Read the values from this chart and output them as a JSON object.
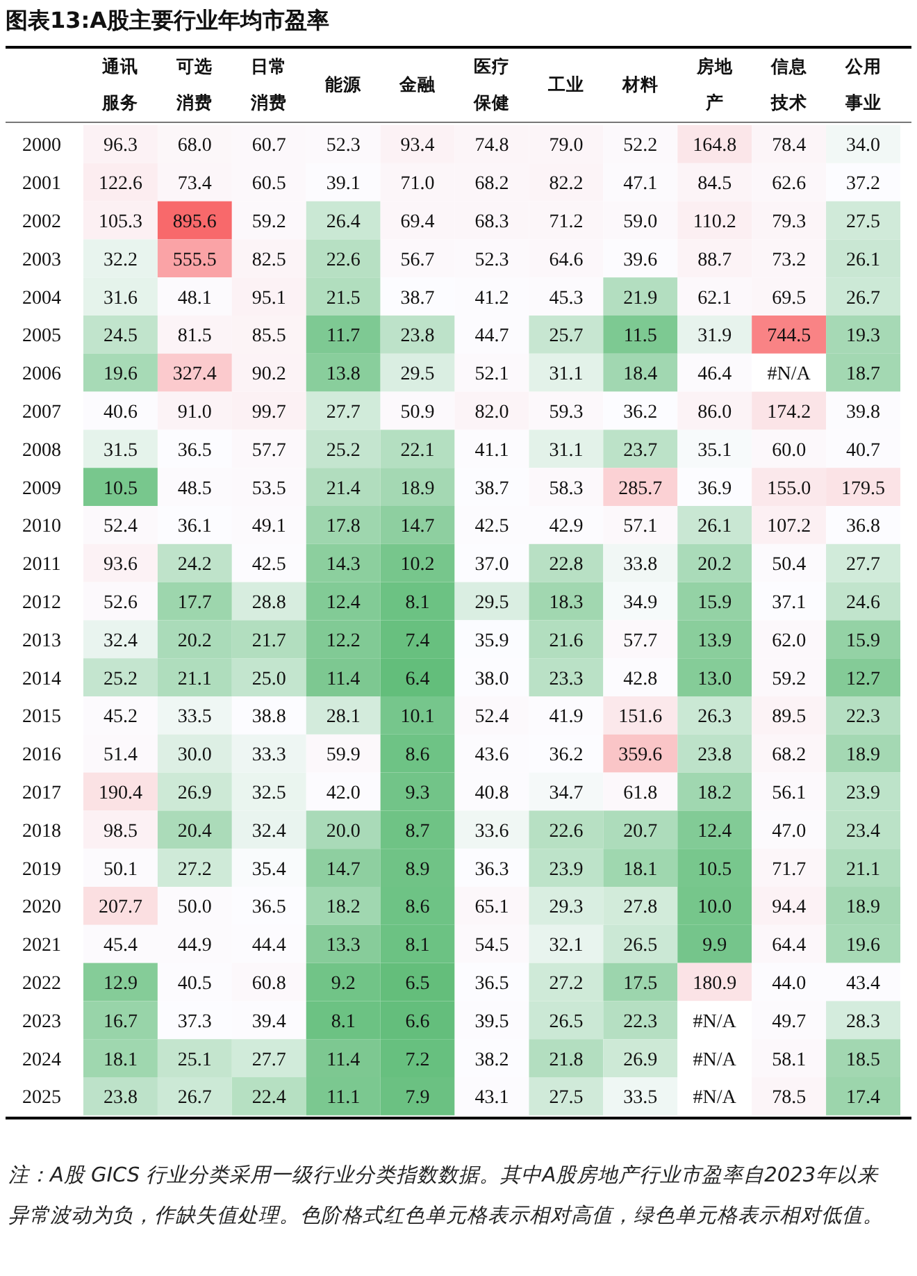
{
  "chart_data": {
    "type": "heatmap",
    "title": "图表13:A股主要行业年均市盈率",
    "categories": [
      "通讯服务",
      "可选消费",
      "日常消费",
      "能源",
      "金融",
      "医疗保健",
      "工业",
      "材料",
      "房地产",
      "信息技术",
      "公用事业"
    ],
    "y_categories": [
      "2000",
      "2001",
      "2002",
      "2003",
      "2004",
      "2005",
      "2006",
      "2007",
      "2008",
      "2009",
      "2010",
      "2011",
      "2012",
      "2013",
      "2014",
      "2015",
      "2016",
      "2017",
      "2018",
      "2019",
      "2020",
      "2021",
      "2022",
      "2023",
      "2024",
      "2025"
    ],
    "cells": [
      [
        96.3,
        68.0,
        60.7,
        52.3,
        93.4,
        74.8,
        79.0,
        52.2,
        164.8,
        78.4,
        34.0
      ],
      [
        122.6,
        73.4,
        60.5,
        39.1,
        71.0,
        68.2,
        82.2,
        47.1,
        84.5,
        62.6,
        37.2
      ],
      [
        105.3,
        895.6,
        59.2,
        26.4,
        69.4,
        68.3,
        71.2,
        59.0,
        110.2,
        79.3,
        27.5
      ],
      [
        32.2,
        555.5,
        82.5,
        22.6,
        56.7,
        52.3,
        64.6,
        39.6,
        88.7,
        73.2,
        26.1
      ],
      [
        31.6,
        48.1,
        95.1,
        21.5,
        38.7,
        41.2,
        45.3,
        21.9,
        62.1,
        69.5,
        26.7
      ],
      [
        24.5,
        81.5,
        85.5,
        11.7,
        23.8,
        44.7,
        25.7,
        11.5,
        31.9,
        744.5,
        19.3
      ],
      [
        19.6,
        327.4,
        90.2,
        13.8,
        29.5,
        52.1,
        31.1,
        18.4,
        46.4,
        null,
        18.7
      ],
      [
        40.6,
        91.0,
        99.7,
        27.7,
        50.9,
        82.0,
        59.3,
        36.2,
        86.0,
        174.2,
        39.8
      ],
      [
        31.5,
        36.5,
        57.7,
        25.2,
        22.1,
        41.1,
        31.1,
        23.7,
        35.1,
        60.0,
        40.7
      ],
      [
        10.5,
        48.5,
        53.5,
        21.4,
        18.9,
        38.7,
        58.3,
        285.7,
        36.9,
        155.0,
        179.5
      ],
      [
        52.4,
        36.1,
        49.1,
        17.8,
        14.7,
        42.5,
        42.9,
        57.1,
        26.1,
        107.2,
        36.8
      ],
      [
        93.6,
        24.2,
        42.5,
        14.3,
        10.2,
        37.0,
        22.8,
        33.8,
        20.2,
        50.4,
        27.7
      ],
      [
        52.6,
        17.7,
        28.8,
        12.4,
        8.1,
        29.5,
        18.3,
        34.9,
        15.9,
        37.1,
        24.6
      ],
      [
        32.4,
        20.2,
        21.7,
        12.2,
        7.4,
        35.9,
        21.6,
        57.7,
        13.9,
        62.0,
        15.9
      ],
      [
        25.2,
        21.1,
        25.0,
        11.4,
        6.4,
        38.0,
        23.3,
        42.8,
        13.0,
        59.2,
        12.7
      ],
      [
        45.2,
        33.5,
        38.8,
        28.1,
        10.1,
        52.4,
        41.9,
        151.6,
        26.3,
        89.5,
        22.3
      ],
      [
        51.4,
        30.0,
        33.3,
        59.9,
        8.6,
        43.6,
        36.2,
        359.6,
        23.8,
        68.2,
        18.9
      ],
      [
        190.4,
        26.9,
        32.5,
        42.0,
        9.3,
        40.8,
        34.7,
        61.8,
        18.2,
        56.1,
        23.9
      ],
      [
        98.5,
        20.4,
        32.4,
        20.0,
        8.7,
        33.6,
        22.6,
        20.7,
        12.4,
        47.0,
        23.4
      ],
      [
        50.1,
        27.2,
        35.4,
        14.7,
        8.9,
        36.3,
        23.9,
        18.1,
        10.5,
        71.7,
        21.1
      ],
      [
        207.7,
        50.0,
        36.5,
        18.2,
        8.6,
        65.1,
        29.3,
        27.8,
        10.0,
        94.4,
        18.9
      ],
      [
        45.4,
        44.9,
        44.4,
        13.3,
        8.1,
        54.5,
        32.1,
        26.5,
        9.9,
        64.4,
        19.6
      ],
      [
        12.9,
        40.5,
        60.8,
        9.2,
        6.5,
        36.5,
        27.2,
        17.5,
        180.9,
        44.0,
        43.4
      ],
      [
        16.7,
        37.3,
        39.4,
        8.1,
        6.6,
        39.5,
        26.5,
        22.3,
        null,
        49.7,
        28.3
      ],
      [
        18.1,
        25.1,
        27.7,
        11.4,
        7.2,
        38.2,
        21.8,
        26.9,
        null,
        58.1,
        18.5
      ],
      [
        23.8,
        26.7,
        22.4,
        11.1,
        7.9,
        43.1,
        27.5,
        33.5,
        null,
        78.5,
        17.4
      ]
    ],
    "cell_labels": [
      [
        "96.3",
        "68.0",
        "60.7",
        "52.3",
        "93.4",
        "74.8",
        "79.0",
        "52.2",
        "164.8",
        "78.4",
        "34.0"
      ],
      [
        "122.6",
        "73.4",
        "60.5",
        "39.1",
        "71.0",
        "68.2",
        "82.2",
        "47.1",
        "84.5",
        "62.6",
        "37.2"
      ],
      [
        "105.3",
        "895.6",
        "59.2",
        "26.4",
        "69.4",
        "68.3",
        "71.2",
        "59.0",
        "110.2",
        "79.3",
        "27.5"
      ],
      [
        "32.2",
        "555.5",
        "82.5",
        "22.6",
        "56.7",
        "52.3",
        "64.6",
        "39.6",
        "88.7",
        "73.2",
        "26.1"
      ],
      [
        "31.6",
        "48.1",
        "95.1",
        "21.5",
        "38.7",
        "41.2",
        "45.3",
        "21.9",
        "62.1",
        "69.5",
        "26.7"
      ],
      [
        "24.5",
        "81.5",
        "85.5",
        "11.7",
        "23.8",
        "44.7",
        "25.7",
        "11.5",
        "31.9",
        "744.5",
        "19.3"
      ],
      [
        "19.6",
        "327.4",
        "90.2",
        "13.8",
        "29.5",
        "52.1",
        "31.1",
        "18.4",
        "46.4",
        "#N/A",
        "18.7"
      ],
      [
        "40.6",
        "91.0",
        "99.7",
        "27.7",
        "50.9",
        "82.0",
        "59.3",
        "36.2",
        "86.0",
        "174.2",
        "39.8"
      ],
      [
        "31.5",
        "36.5",
        "57.7",
        "25.2",
        "22.1",
        "41.1",
        "31.1",
        "23.7",
        "35.1",
        "60.0",
        "40.7"
      ],
      [
        "10.5",
        "48.5",
        "53.5",
        "21.4",
        "18.9",
        "38.7",
        "58.3",
        "285.7",
        "36.9",
        "155.0",
        "179.5"
      ],
      [
        "52.4",
        "36.1",
        "49.1",
        "17.8",
        "14.7",
        "42.5",
        "42.9",
        "57.1",
        "26.1",
        "107.2",
        "36.8"
      ],
      [
        "93.6",
        "24.2",
        "42.5",
        "14.3",
        "10.2",
        "37.0",
        "22.8",
        "33.8",
        "20.2",
        "50.4",
        "27.7"
      ],
      [
        "52.6",
        "17.7",
        "28.8",
        "12.4",
        "8.1",
        "29.5",
        "18.3",
        "34.9",
        "15.9",
        "37.1",
        "24.6"
      ],
      [
        "32.4",
        "20.2",
        "21.7",
        "12.2",
        "7.4",
        "35.9",
        "21.6",
        "57.7",
        "13.9",
        "62.0",
        "15.9"
      ],
      [
        "25.2",
        "21.1",
        "25.0",
        "11.4",
        "6.4",
        "38.0",
        "23.3",
        "42.8",
        "13.0",
        "59.2",
        "12.7"
      ],
      [
        "45.2",
        "33.5",
        "38.8",
        "28.1",
        "10.1",
        "52.4",
        "41.9",
        "151.6",
        "26.3",
        "89.5",
        "22.3"
      ],
      [
        "51.4",
        "30.0",
        "33.3",
        "59.9",
        "8.6",
        "43.6",
        "36.2",
        "359.6",
        "23.8",
        "68.2",
        "18.9"
      ],
      [
        "190.4",
        "26.9",
        "32.5",
        "42.0",
        "9.3",
        "40.8",
        "34.7",
        "61.8",
        "18.2",
        "56.1",
        "23.9"
      ],
      [
        "98.5",
        "20.4",
        "32.4",
        "20.0",
        "8.7",
        "33.6",
        "22.6",
        "20.7",
        "12.4",
        "47.0",
        "23.4"
      ],
      [
        "50.1",
        "27.2",
        "35.4",
        "14.7",
        "8.9",
        "36.3",
        "23.9",
        "18.1",
        "10.5",
        "71.7",
        "21.1"
      ],
      [
        "207.7",
        "50.0",
        "36.5",
        "18.2",
        "8.6",
        "65.1",
        "29.3",
        "27.8",
        "10.0",
        "94.4",
        "18.9"
      ],
      [
        "45.4",
        "44.9",
        "44.4",
        "13.3",
        "8.1",
        "54.5",
        "32.1",
        "26.5",
        "9.9",
        "64.4",
        "19.6"
      ],
      [
        "12.9",
        "40.5",
        "60.8",
        "9.2",
        "6.5",
        "36.5",
        "27.2",
        "17.5",
        "180.9",
        "44.0",
        "43.4"
      ],
      [
        "16.7",
        "37.3",
        "39.4",
        "8.1",
        "6.6",
        "39.5",
        "26.5",
        "22.3",
        "#N/A",
        "49.7",
        "28.3"
      ],
      [
        "18.1",
        "25.1",
        "27.7",
        "11.4",
        "7.2",
        "38.2",
        "21.8",
        "26.9",
        "#N/A",
        "58.1",
        "18.5"
      ],
      [
        "23.8",
        "26.7",
        "22.4",
        "11.1",
        "7.9",
        "43.1",
        "27.5",
        "33.5",
        "#N/A",
        "78.5",
        "17.4"
      ]
    ],
    "annotations": [
      "注：A股 GICS 行业分类采用一级行业分类指数数据。其中A股房地产行业市盈率自2023年以来异常波动为负，作缺失值处理。色阶格式红色单元格表示相对高值，绿色单元格表示相对低值。"
    ]
  }
}
